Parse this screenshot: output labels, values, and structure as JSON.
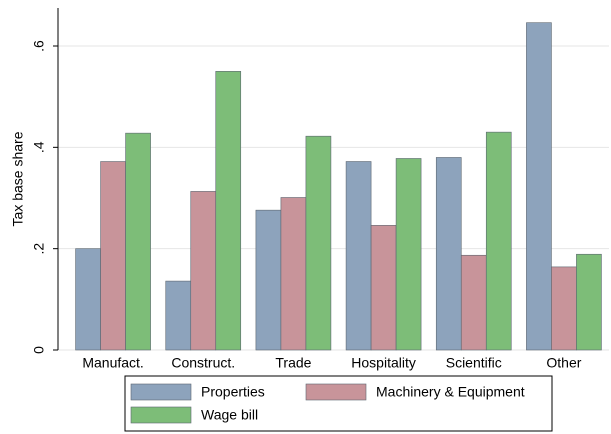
{
  "chart_data": {
    "type": "bar",
    "y_label": "Tax base share",
    "categories": [
      "Manufact.",
      "Construct.",
      "Trade",
      "Hospitality",
      "Scientific",
      "Other"
    ],
    "series": [
      {
        "name": "Properties",
        "color": "#8da3bc",
        "values": [
          0.2,
          0.136,
          0.276,
          0.372,
          0.38,
          0.646
        ]
      },
      {
        "name": "Machinery & Equipment",
        "color": "#c8949a",
        "values": [
          0.372,
          0.313,
          0.301,
          0.246,
          0.187,
          0.164
        ]
      },
      {
        "name": "Wage bill",
        "color": "#7dbd78",
        "values": [
          0.428,
          0.55,
          0.422,
          0.378,
          0.43,
          0.189
        ]
      }
    ],
    "ylim": [
      0,
      0.675
    ],
    "yticks": [
      0,
      {
        "value": 0.2,
        "label": ".2"
      },
      {
        "value": 0.4,
        "label": ".4"
      },
      {
        "value": 0.6,
        "label": ".6"
      }
    ],
    "grid": true,
    "legend": "bottom"
  }
}
